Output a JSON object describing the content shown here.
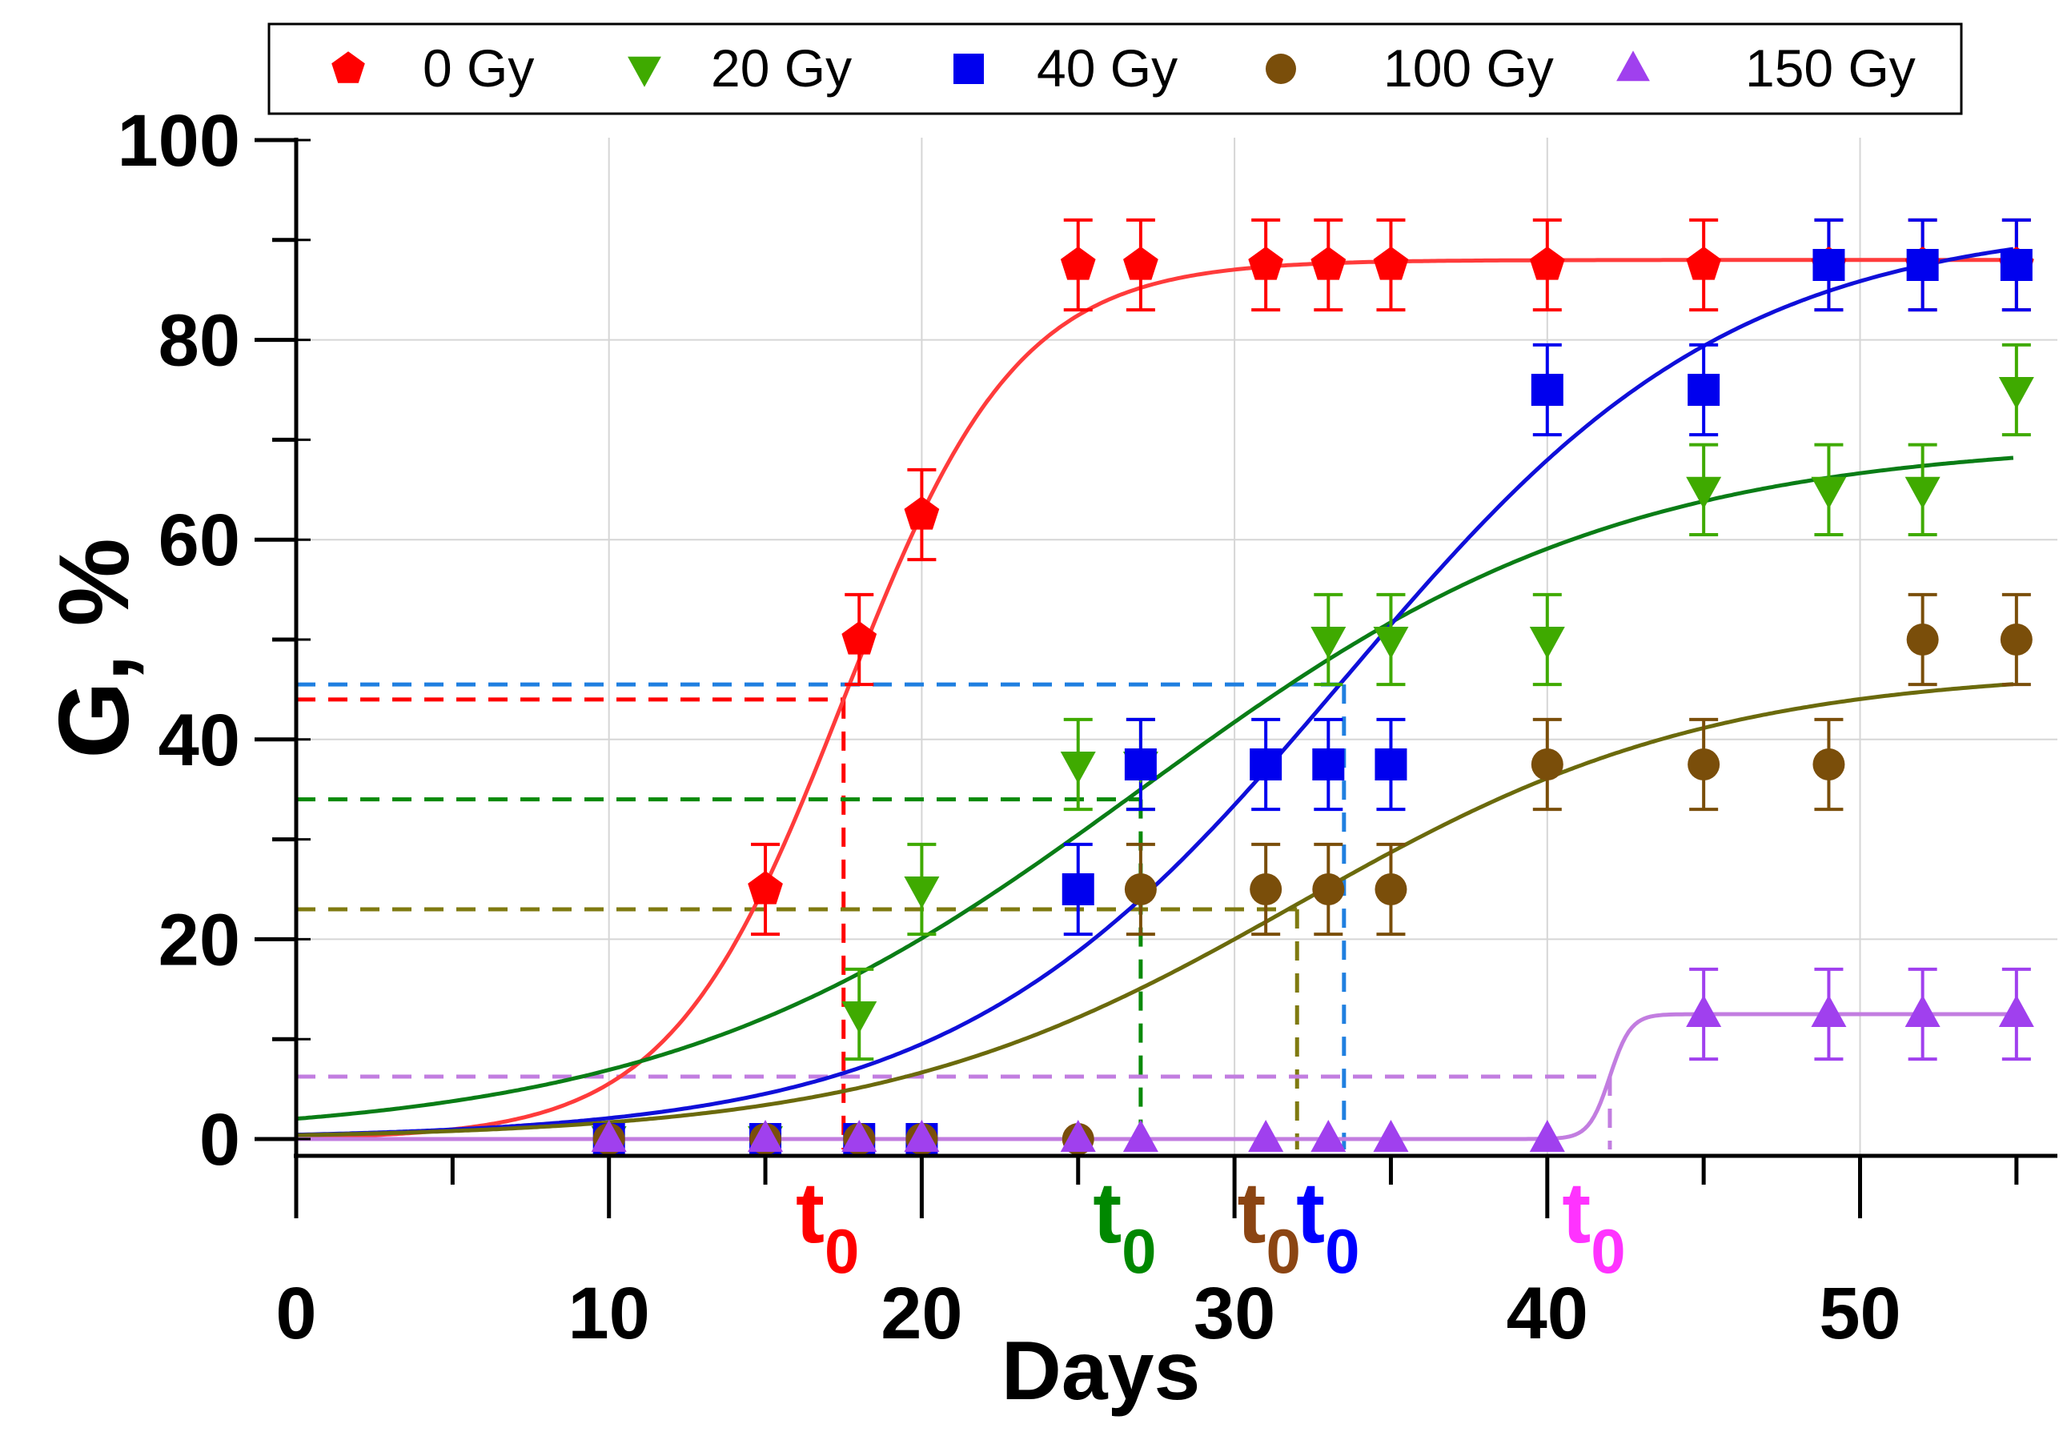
{
  "chart_data": {
    "type": "scatter",
    "xlabel": "Days",
    "ylabel": "G, %",
    "xlim": [
      0,
      55
    ],
    "ylim": [
      -1.5,
      100
    ],
    "xticks": [
      "0",
      "10",
      "20",
      "30",
      "40",
      "50"
    ],
    "yticks": [
      "0",
      "20",
      "40",
      "60",
      "80",
      "100"
    ],
    "grid": true,
    "legend_position": "top",
    "error": 4.5,
    "series": [
      {
        "name": "0 Gy",
        "color": "#ff0000",
        "fit_color": "#ff3b3b",
        "marker": "pentagon",
        "x": [
          15,
          18,
          20,
          25,
          27,
          31,
          33,
          35,
          40,
          45,
          49,
          52,
          55
        ],
        "y": [
          25,
          50,
          62.5,
          87.5,
          87.5,
          87.5,
          87.5,
          87.5,
          87.5,
          87.5,
          87.5,
          87.5,
          87.5
        ],
        "fit": {
          "A": 88,
          "t0": 17.5,
          "k": 0.36
        },
        "guide": {
          "y": 44,
          "color": "#ff0000"
        },
        "t0_label": {
          "text": "t",
          "sub": "0",
          "color": "#ff0000"
        }
      },
      {
        "name": "20 Gy",
        "color": "#3faa00",
        "fit_color": "#0a7d16",
        "marker": "triangle-down",
        "x": [
          10,
          15,
          18,
          20,
          25,
          27,
          33,
          35,
          40,
          45,
          49,
          52,
          55
        ],
        "y": [
          0,
          0,
          12.5,
          25,
          37.5,
          37.5,
          50,
          50,
          50,
          65,
          65,
          65,
          75
        ],
        "fit": {
          "A": 70,
          "t0": 27,
          "k": 0.13
        },
        "guide": {
          "y": 34,
          "color": "#0a8a0a"
        },
        "t0_label": {
          "text": "t",
          "sub": "0",
          "color": "#008800"
        }
      },
      {
        "name": "40 Gy",
        "color": "#0000ee",
        "fit_color": "#0f0fd9",
        "marker": "square",
        "x": [
          10,
          15,
          18,
          20,
          25,
          27,
          31,
          33,
          35,
          40,
          45,
          49,
          52,
          55
        ],
        "y": [
          0,
          0,
          0,
          0,
          25,
          37.5,
          37.5,
          37.5,
          37.5,
          75,
          75,
          87.5,
          87.5,
          87.5
        ],
        "fit": {
          "A": 92,
          "t0": 33.5,
          "k": 0.16
        },
        "guide": {
          "y": 45.5,
          "color": "#1f7fe0"
        },
        "t0_label": {
          "text": "t",
          "sub": "0",
          "color": "#0000ff"
        }
      },
      {
        "name": "100 Gy",
        "color": "#7a4e0a",
        "fit_color": "#6b6a0c",
        "marker": "circle",
        "x": [
          10,
          15,
          18,
          20,
          25,
          27,
          31,
          33,
          35,
          40,
          45,
          49,
          52,
          55
        ],
        "y": [
          0,
          0,
          0,
          0,
          0,
          25,
          25,
          25,
          25,
          37.5,
          37.5,
          37.5,
          50,
          50
        ],
        "fit": {
          "A": 47,
          "t0": 32,
          "k": 0.15
        },
        "guide": {
          "y": 23,
          "color": "#7f7a10"
        },
        "t0_label": {
          "text": "t",
          "sub": "0",
          "color": "#8b4513"
        }
      },
      {
        "name": "150 Gy",
        "color": "#a040ee",
        "fit_color": "#c27de0",
        "marker": "triangle-up",
        "x": [
          10,
          15,
          18,
          20,
          25,
          27,
          31,
          33,
          35,
          40,
          45,
          49,
          52,
          55
        ],
        "y": [
          0,
          0,
          0,
          0,
          0,
          0,
          0,
          0,
          0,
          0,
          12.5,
          12.5,
          12.5,
          12.5
        ],
        "fit": {
          "A": 12.5,
          "t0": 42,
          "k": 3.0
        },
        "guide": {
          "y": 6.25,
          "color": "#c27de0"
        },
        "t0_label": {
          "text": "t",
          "sub": "0",
          "color": "#ff33ff"
        }
      }
    ]
  }
}
